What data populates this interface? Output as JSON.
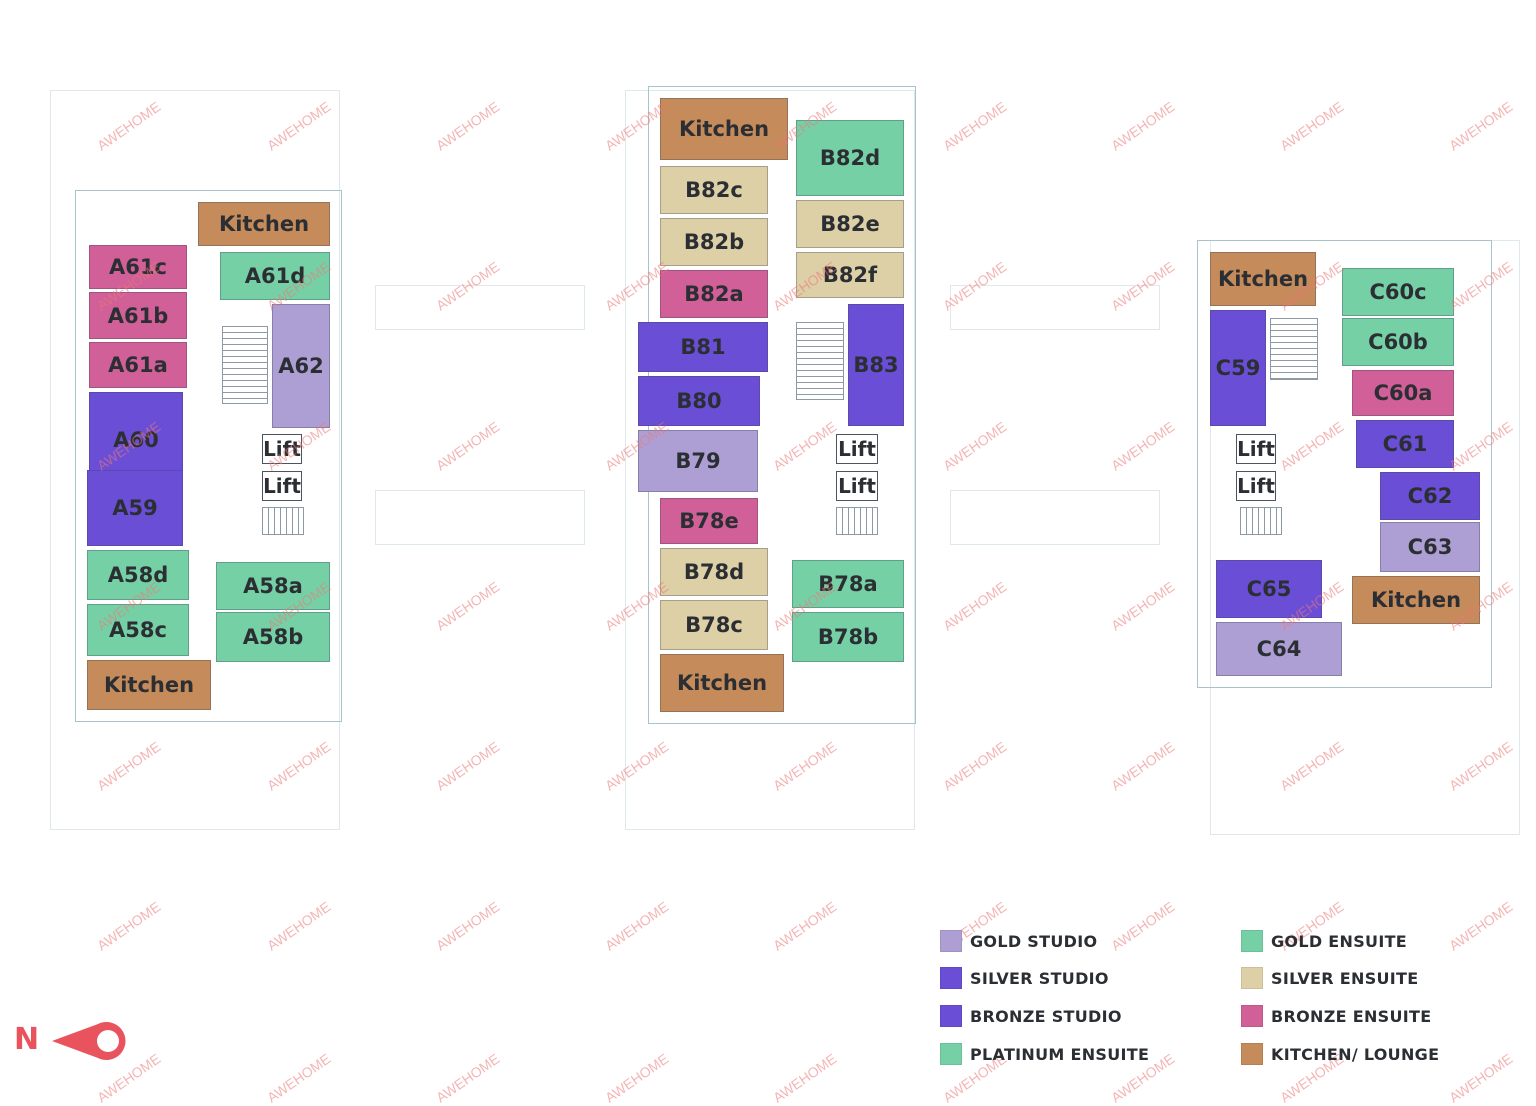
{
  "colors": {
    "gold_studio": "#ad9fd4",
    "silver_studio": "#6a4fd6",
    "bronze_studio": "#6a4fd6",
    "platinum_ensuite": "#76d0a6",
    "gold_ensuite": "#76d0a6",
    "silver_ensuite": "#ddcfa6",
    "bronze_ensuite": "#d15f98",
    "kitchen": "#c68b5a",
    "accent_north": "#e8535d",
    "outline": "#a9c3cc"
  },
  "rooms": [
    {
      "label": "Kitchen",
      "type": "kitchen"
    },
    {
      "label": "A61c",
      "type": "bronze_ensuite"
    },
    {
      "label": "A61d",
      "type": "gold_ensuite"
    },
    {
      "label": "A61b",
      "type": "bronze_ensuite"
    },
    {
      "label": "A61a",
      "type": "bronze_ensuite"
    },
    {
      "label": "A62",
      "type": "gold_studio"
    },
    {
      "label": "A60",
      "type": "silver_studio"
    },
    {
      "label": "A59",
      "type": "silver_studio"
    },
    {
      "label": "A58d",
      "type": "gold_ensuite"
    },
    {
      "label": "A58a",
      "type": "gold_ensuite"
    },
    {
      "label": "A58c",
      "type": "gold_ensuite"
    },
    {
      "label": "A58b",
      "type": "gold_ensuite"
    },
    {
      "label": "Kitchen",
      "type": "kitchen"
    },
    {
      "label": "Kitchen",
      "type": "kitchen"
    },
    {
      "label": "B82d",
      "type": "gold_ensuite"
    },
    {
      "label": "B82c",
      "type": "silver_ensuite"
    },
    {
      "label": "B82e",
      "type": "silver_ensuite"
    },
    {
      "label": "B82b",
      "type": "silver_ensuite"
    },
    {
      "label": "B82f",
      "type": "silver_ensuite"
    },
    {
      "label": "B82a",
      "type": "bronze_ensuite"
    },
    {
      "label": "B81",
      "type": "silver_studio"
    },
    {
      "label": "B83",
      "type": "silver_studio"
    },
    {
      "label": "B80",
      "type": "silver_studio"
    },
    {
      "label": "B79",
      "type": "gold_studio"
    },
    {
      "label": "B78e",
      "type": "bronze_ensuite"
    },
    {
      "label": "B78d",
      "type": "silver_ensuite"
    },
    {
      "label": "B78a",
      "type": "gold_ensuite"
    },
    {
      "label": "B78c",
      "type": "silver_ensuite"
    },
    {
      "label": "B78b",
      "type": "gold_ensuite"
    },
    {
      "label": "Kitchen",
      "type": "kitchen"
    },
    {
      "label": "Kitchen",
      "type": "kitchen"
    },
    {
      "label": "C60c",
      "type": "gold_ensuite"
    },
    {
      "label": "C59",
      "type": "silver_studio"
    },
    {
      "label": "C60b",
      "type": "gold_ensuite"
    },
    {
      "label": "C60a",
      "type": "bronze_ensuite"
    },
    {
      "label": "C61",
      "type": "silver_studio"
    },
    {
      "label": "C62",
      "type": "silver_studio"
    },
    {
      "label": "C63",
      "type": "gold_studio"
    },
    {
      "label": "C65",
      "type": "silver_studio"
    },
    {
      "label": "Kitchen",
      "type": "kitchen"
    },
    {
      "label": "C64",
      "type": "gold_studio"
    }
  ],
  "lifts": [
    "Lift",
    "Lift",
    "Lift",
    "Lift",
    "Lift",
    "Lift"
  ],
  "watermark": "AWEHOME",
  "legend": [
    {
      "label": "GOLD STUDIO",
      "color": "#ad9fd4"
    },
    {
      "label": "SILVER STUDIO",
      "color": "#6a4fd6"
    },
    {
      "label": "BRONZE STUDIO",
      "color": "#6a4fd6"
    },
    {
      "label": "PLATINUM ENSUITE",
      "color": "#76d0a6"
    },
    {
      "label": "GOLD ENSUITE",
      "color": "#76d0a6"
    },
    {
      "label": "SILVER ENSUITE",
      "color": "#ddcfa6"
    },
    {
      "label": "BRONZE ENSUITE",
      "color": "#d15f98"
    },
    {
      "label": "KITCHEN/ LOUNGE",
      "color": "#c68b5a"
    }
  ],
  "compass": {
    "letter": "N"
  }
}
